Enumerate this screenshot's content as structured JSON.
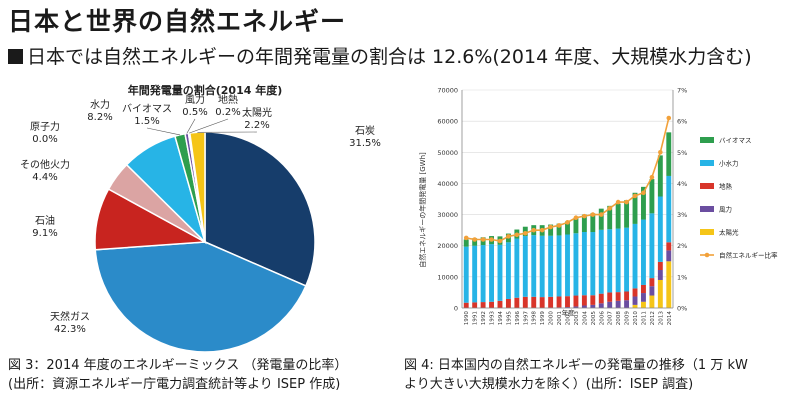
{
  "page": {
    "title": "日本と世界の自然エネルギー",
    "subtitle": "日本では自然エネルギーの年間発電量の割合は 12.6%(2014 年度、大規模水力含む)"
  },
  "captions": {
    "left_line1": "図 3：2014 年度のエネルギーミックス （発電量の比率）",
    "left_line2": "(出所：資源エネルギー庁電力調査統計等より ISEP 作成)",
    "right_line1": "図 4: 日本国内の自然エネルギーの発電量の推移（1 万 kW",
    "right_line2": "より大きい大規模水力を除く）(出所：ISEP 調査)"
  },
  "chart_data": [
    {
      "type": "pie",
      "title": "年間発電量の割合(2014 年度)",
      "slices": [
        {
          "label": "石炭",
          "value": 31.5,
          "value_label": "31.5%",
          "color": "#163d6b"
        },
        {
          "label": "天然ガス",
          "value": 42.3,
          "value_label": "42.3%",
          "color": "#2b8bc9"
        },
        {
          "label": "石油",
          "value": 9.1,
          "value_label": "9.1%",
          "color": "#c8241f"
        },
        {
          "label": "その他火力",
          "value": 4.4,
          "value_label": "4.4%",
          "color": "#dba4a3"
        },
        {
          "label": "原子力",
          "value": 0.0,
          "value_label": "0.0%",
          "color": "#e8c050"
        },
        {
          "label": "水力",
          "value": 8.2,
          "value_label": "8.2%",
          "color": "#27b4e6"
        },
        {
          "label": "バイオマス",
          "value": 1.5,
          "value_label": "1.5%",
          "color": "#2e9e4e"
        },
        {
          "label": "風力",
          "value": 0.5,
          "value_label": "0.5%",
          "color": "#6b4ea0"
        },
        {
          "label": "地熱",
          "value": 0.2,
          "value_label": "0.2%",
          "color": "#d8352a"
        },
        {
          "label": "太陽光",
          "value": 2.2,
          "value_label": "2.2%",
          "color": "#f5c518"
        }
      ]
    },
    {
      "type": "bar",
      "stacked": true,
      "xlabel": "年度",
      "ylabel": "自然エネルギーの年間発電量 [GWh]",
      "ylim": [
        0,
        70000
      ],
      "y_ticks": [
        "0",
        "10000",
        "20000",
        "30000",
        "40000",
        "50000",
        "60000",
        "70000"
      ],
      "y2lim": [
        0,
        7
      ],
      "y2_ticks": [
        "0%",
        "1%",
        "2%",
        "3%",
        "4%",
        "5%",
        "6%",
        "7%"
      ],
      "categories": [
        "1990",
        "1991",
        "1992",
        "1993",
        "1994",
        "1995",
        "1996",
        "1997",
        "1998",
        "1999",
        "2000",
        "2001",
        "2002",
        "2003",
        "2004",
        "2005",
        "2006",
        "2007",
        "2008",
        "2009",
        "2010",
        "2011",
        "2012",
        "2013",
        "2014"
      ],
      "series": [
        {
          "name": "太陽光",
          "color": "#f5c518",
          "values": [
            0,
            0,
            0,
            0,
            0,
            0,
            0,
            0,
            0,
            0,
            0,
            0,
            0,
            0,
            0,
            0,
            0,
            0,
            0,
            0,
            1000,
            2000,
            4000,
            9000,
            15000
          ]
        },
        {
          "name": "風力",
          "color": "#6b4ea0",
          "values": [
            0,
            0,
            0,
            0,
            0,
            0,
            0,
            0,
            0,
            0,
            100,
            200,
            300,
            500,
            800,
            1000,
            1500,
            2000,
            2300,
            2500,
            2700,
            2800,
            3000,
            3200,
            3500
          ]
        },
        {
          "name": "地熱",
          "color": "#d8352a",
          "values": [
            1700,
            1800,
            1900,
            2000,
            2300,
            2900,
            3300,
            3600,
            3600,
            3500,
            3500,
            3500,
            3500,
            3500,
            3300,
            3100,
            3100,
            3000,
            2800,
            2800,
            2600,
            2600,
            2600,
            2600,
            2600
          ]
        },
        {
          "name": "小水力",
          "color": "#27b4e6",
          "values": [
            18000,
            18200,
            18300,
            18500,
            18000,
            18200,
            19000,
            19500,
            19800,
            19700,
            19600,
            19600,
            19800,
            20000,
            20300,
            20300,
            20500,
            20300,
            20400,
            20500,
            20700,
            21000,
            20800,
            21000,
            21300
          ]
        },
        {
          "name": "バイオマス",
          "color": "#2e9e4e",
          "values": [
            2300,
            2400,
            2500,
            2600,
            2700,
            2800,
            2900,
            3000,
            3200,
            3400,
            3600,
            3800,
            4200,
            5000,
            5600,
            6000,
            6800,
            7500,
            8000,
            8800,
            10000,
            10500,
            11000,
            13200,
            14000
          ]
        }
      ],
      "line": {
        "name": "自然エネルギー比率",
        "color": "#f2a13a",
        "values": [
          2.25,
          2.2,
          2.2,
          2.2,
          2.15,
          2.3,
          2.35,
          2.4,
          2.5,
          2.5,
          2.6,
          2.65,
          2.75,
          2.9,
          2.95,
          3.0,
          3.0,
          3.2,
          3.4,
          3.4,
          3.6,
          3.7,
          4.2,
          5.0,
          6.1
        ]
      }
    }
  ]
}
